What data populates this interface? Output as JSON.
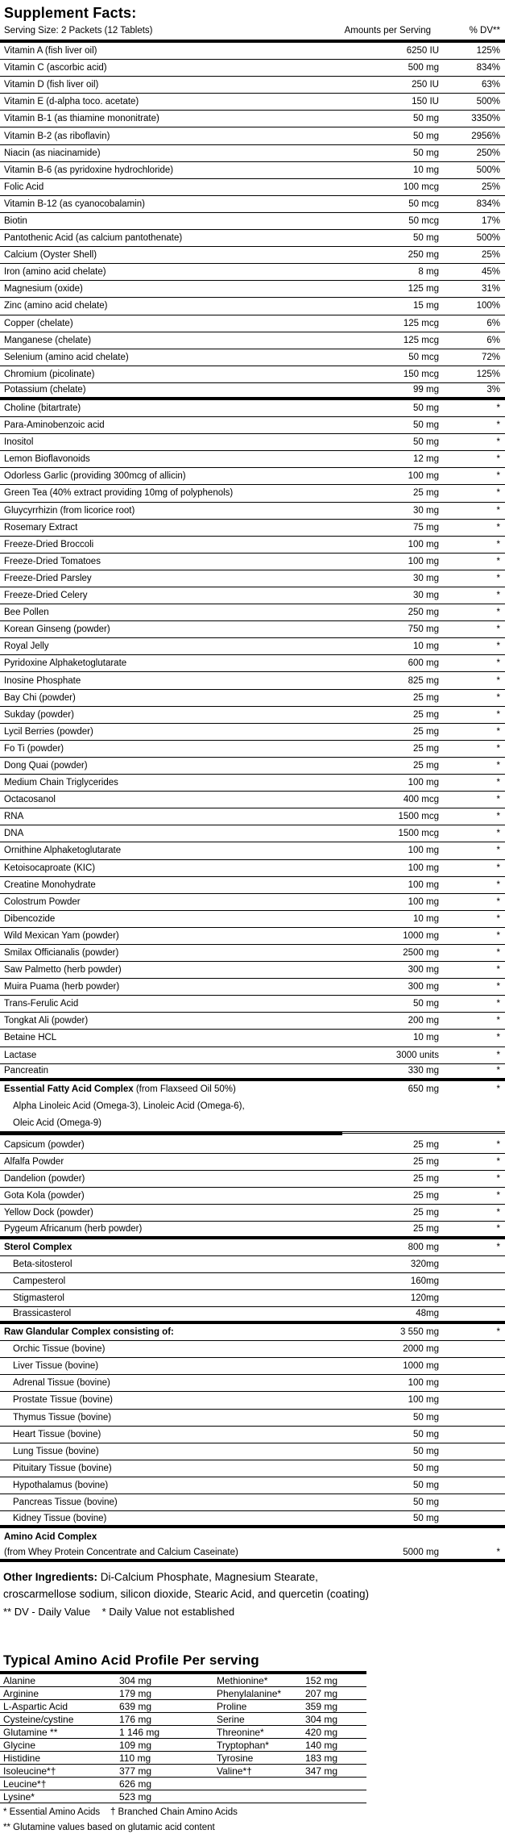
{
  "title": "Supplement Facts:",
  "table": {
    "header": {
      "serving": "Serving Size: 2 Packets (12 Tablets)",
      "amount_col": "Amounts per Serving",
      "dv_col": "% DV**"
    },
    "rows": [
      {
        "n": "Vitamin A (fish liver oil)",
        "a": "6250 IU",
        "d": "125%"
      },
      {
        "n": "Vitamin C (ascorbic acid)",
        "a": "500 mg",
        "d": "834%"
      },
      {
        "n": "Vitamin D (fish liver oil)",
        "a": "250 IU",
        "d": "63%"
      },
      {
        "n": "Vitamin E (d-alpha toco. acetate)",
        "a": "150 IU",
        "d": "500%"
      },
      {
        "n": "Vitamin B-1 (as thiamine mononitrate)",
        "a": "50 mg",
        "d": "3350%"
      },
      {
        "n": "Vitamin B-2 (as riboflavin)",
        "a": "50 mg",
        "d": "2956%"
      },
      {
        "n": "Niacin (as niacinamide)",
        "a": "50 mg",
        "d": "250%"
      },
      {
        "n": "Vitamin B-6 (as pyridoxine hydrochloride)",
        "a": "10 mg",
        "d": "500%"
      },
      {
        "n": "Folic Acid",
        "a": "100 mcg",
        "d": "25%"
      },
      {
        "n": "Vitamin B-12 (as cyanocobalamin)",
        "a": "50 mcg",
        "d": "834%"
      },
      {
        "n": "Biotin",
        "a": "50 mcg",
        "d": "17%"
      },
      {
        "n": "Pantothenic Acid (as calcium pantothenate)",
        "a": "50 mg",
        "d": "500%"
      },
      {
        "n": "Calcium (Oyster Shell)",
        "a": "250 mg",
        "d": "25%"
      },
      {
        "n": "Iron (amino acid chelate)",
        "a": "8 mg",
        "d": "45%"
      },
      {
        "n": "Magnesium (oxide)",
        "a": "125 mg",
        "d": "31%"
      },
      {
        "n": "Zinc (amino acid chelate)",
        "a": "15 mg",
        "d": "100%"
      },
      {
        "n": "Copper (chelate)",
        "a": "125 mcg",
        "d": "6%"
      },
      {
        "n": "Manganese (chelate)",
        "a": "125 mcg",
        "d": "6%"
      },
      {
        "n": "Selenium (amino acid chelate)",
        "a": "50 mcg",
        "d": "72%"
      },
      {
        "n": "Chromium (picolinate)",
        "a": "150 mcg",
        "d": "125%"
      },
      {
        "n": "Potassium (chelate)",
        "a": "99 mg",
        "d": "3%",
        "sep": "thick"
      },
      {
        "n": "Choline (bitartrate)",
        "a": "50 mg",
        "d": "*"
      },
      {
        "n": "Para-Aminobenzoic acid",
        "a": "50 mg",
        "d": "*"
      },
      {
        "n": "Inositol",
        "a": "50 mg",
        "d": "*"
      },
      {
        "n": "Lemon Bioflavonoids",
        "a": "12 mg",
        "d": "*"
      },
      {
        "n": "Odorless Garlic (providing 300mcg of allicin)",
        "a": "100 mg",
        "d": "*"
      },
      {
        "n": "Green Tea (40% extract providing 10mg of polyphenols)",
        "a": "25 mg",
        "d": "*"
      },
      {
        "n": "Gluycyrrhizin (from licorice root)",
        "a": "30 mg",
        "d": "*"
      },
      {
        "n": "Rosemary Extract",
        "a": "75 mg",
        "d": "*"
      },
      {
        "n": "Freeze-Dried Broccoli",
        "a": "100 mg",
        "d": "*"
      },
      {
        "n": "Freeze-Dried Tomatoes",
        "a": "100 mg",
        "d": "*"
      },
      {
        "n": "Freeze-Dried Parsley",
        "a": "30 mg",
        "d": "*"
      },
      {
        "n": "Freeze-Dried Celery",
        "a": "30 mg",
        "d": "*"
      },
      {
        "n": "Bee Pollen",
        "a": "250 mg",
        "d": "*"
      },
      {
        "n": "Korean Ginseng (powder)",
        "a": "750 mg",
        "d": "*"
      },
      {
        "n": "Royal Jelly",
        "a": "10 mg",
        "d": "*"
      },
      {
        "n": "Pyridoxine Alphaketoglutarate",
        "a": "600 mg",
        "d": "*"
      },
      {
        "n": "Inosine Phosphate",
        "a": "825 mg",
        "d": "*"
      },
      {
        "n": "Bay Chi (powder)",
        "a": "25 mg",
        "d": "*"
      },
      {
        "n": "Sukday (powder)",
        "a": "25 mg",
        "d": "*"
      },
      {
        "n": "Lycil Berries (powder)",
        "a": "25 mg",
        "d": "*"
      },
      {
        "n": "Fo Ti (powder)",
        "a": "25 mg",
        "d": "*"
      },
      {
        "n": "Dong Quai (powder)",
        "a": "25 mg",
        "d": "*"
      },
      {
        "n": "Medium Chain Triglycerides",
        "a": "100 mg",
        "d": "*"
      },
      {
        "n": "Octacosanol",
        "a": "400 mcg",
        "d": "*"
      },
      {
        "n": "RNA",
        "a": "1500 mcg",
        "d": "*"
      },
      {
        "n": "DNA",
        "a": "1500 mcg",
        "d": "*"
      },
      {
        "n": "Ornithine Alphaketoglutarate",
        "a": "100 mg",
        "d": "*"
      },
      {
        "n": "Ketoisocaproate (KIC)",
        "a": "100 mg",
        "d": "*"
      },
      {
        "n": "Creatine Monohydrate",
        "a": "100 mg",
        "d": "*"
      },
      {
        "n": "Colostrum Powder",
        "a": "100 mg",
        "d": "*"
      },
      {
        "n": "Dibencozide",
        "a": "10 mg",
        "d": "*"
      },
      {
        "n": "Wild Mexican Yam (powder)",
        "a": "1000 mg",
        "d": "*"
      },
      {
        "n": "Smilax Officianalis (powder)",
        "a": "2500 mg",
        "d": "*"
      },
      {
        "n": "Saw Palmetto (herb powder)",
        "a": "300 mg",
        "d": "*"
      },
      {
        "n": "Muira Puama (herb powder)",
        "a": "300 mg",
        "d": "*"
      },
      {
        "n": "Trans-Ferulic Acid",
        "a": "50 mg",
        "d": "*"
      },
      {
        "n": "Tongkat Ali (powder)",
        "a": "200 mg",
        "d": "*"
      },
      {
        "n": "Betaine HCL",
        "a": "10 mg",
        "d": "*"
      },
      {
        "n": "Lactase",
        "a": "3000 units",
        "d": "*"
      },
      {
        "n": "Pancreatin",
        "a": "330 mg",
        "d": "*",
        "sep": "thick"
      },
      {
        "n": "Essential Fatty Acid Complex",
        "n2": " (from Flaxseed Oil 50%)",
        "b": 1,
        "a": "650 mg",
        "d": "*",
        "sep": "none"
      },
      {
        "n": "Alpha Linoleic Acid (Omega-3), Linoleic Acid (Omega-6),",
        "i": 1,
        "sep": "none"
      },
      {
        "n": "Oleic Acid (Omega-9)",
        "i": 1,
        "sep": "thin"
      },
      {
        "hr": "partial"
      },
      {
        "n": "Capsicum (powder)",
        "a": "25 mg",
        "d": "*"
      },
      {
        "n": "Alfalfa Powder",
        "a": "25 mg",
        "d": "*"
      },
      {
        "n": "Dandelion (powder)",
        "a": "25 mg",
        "d": "*"
      },
      {
        "n": "Gota Kola (powder)",
        "a": "25 mg",
        "d": "*"
      },
      {
        "n": "Yellow Dock (powder)",
        "a": "25 mg",
        "d": "*"
      },
      {
        "n": "Pygeum Africanum (herb powder)",
        "a": "25 mg",
        "d": "*",
        "sep": "thick"
      },
      {
        "n": "Sterol Complex",
        "b": 1,
        "a": "800 mg",
        "d": "*"
      },
      {
        "n": "Beta-sitosterol",
        "i": 1,
        "a": "320mg"
      },
      {
        "n": "Campesterol",
        "i": 1,
        "a": "160mg"
      },
      {
        "n": "Stigmasterol",
        "i": 1,
        "a": "120mg"
      },
      {
        "n": "Brassicasterol",
        "i": 1,
        "a": "48mg",
        "sep": "thick"
      },
      {
        "n": "Raw Glandular Complex consisting of:",
        "b": 1,
        "a": "3 550 mg",
        "d": "*"
      },
      {
        "n": "Orchic Tissue (bovine)",
        "i": 1,
        "a": "2000 mg"
      },
      {
        "n": "Liver Tissue (bovine)",
        "i": 1,
        "a": "1000 mg"
      },
      {
        "n": "Adrenal Tissue (bovine)",
        "i": 1,
        "a": "100 mg"
      },
      {
        "n": "Prostate Tissue (bovine)",
        "i": 1,
        "a": "100 mg"
      },
      {
        "n": "Thymus Tissue (bovine)",
        "i": 1,
        "a": "50 mg"
      },
      {
        "n": "Heart Tissue (bovine)",
        "i": 1,
        "a": "50 mg"
      },
      {
        "n": "Lung Tissue (bovine)",
        "i": 1,
        "a": "50 mg"
      },
      {
        "n": "Pituitary Tissue (bovine)",
        "i": 1,
        "a": "50 mg"
      },
      {
        "n": "Hypothalamus (bovine)",
        "i": 1,
        "a": "50 mg"
      },
      {
        "n": "Pancreas Tissue (bovine)",
        "i": 1,
        "a": "50 mg"
      },
      {
        "n": "Kidney Tissue (bovine)",
        "i": 1,
        "a": "50 mg",
        "sep": "thick"
      },
      {
        "n": "Amino Acid Complex",
        "b": 1,
        "sep": "none"
      },
      {
        "n": "(from Whey Protein Concentrate and Calcium Caseinate)",
        "a": "5000 mg",
        "d": "*",
        "sep": "thick"
      }
    ]
  },
  "other_ingredients": {
    "label": "Other Ingredients:",
    "line1_rest": " Di-Calcium Phosphate, Magnesium Stearate,",
    "line2": "croscarmellose sodium, silicon dioxide, Stearic Acid, and quercetin (coating)",
    "dv_note": "** DV - Daily Value    * Daily Value not established"
  },
  "amino": {
    "title": "Typical Amino Acid Profile Per serving",
    "rows": [
      {
        "n1": "Alanine",
        "a1": "304 mg",
        "n2": "Methionine*",
        "a2": "152 mg"
      },
      {
        "n1": "Arginine",
        "a1": "179 mg",
        "n2": "Phenylalanine*",
        "a2": "207 mg"
      },
      {
        "n1": "L-Aspartic Acid",
        "a1": "639 mg",
        "n2": "Proline",
        "a2": "359 mg"
      },
      {
        "n1": "Cysteine/cystine",
        "a1": "176 mg",
        "n2": "Serine",
        "a2": "304 mg"
      },
      {
        "n1": "Glutamine **",
        "a1": "1 146 mg",
        "n2": "Threonine*",
        "a2": "420 mg"
      },
      {
        "n1": "Glycine",
        "a1": "109 mg",
        "n2": "Tryptophan*",
        "a2": "140 mg"
      },
      {
        "n1": "Histidine",
        "a1": "110 mg",
        "n2": "Tyrosine",
        "a2": "183 mg"
      },
      {
        "n1": "Isoleucine*†",
        "a1": "377 mg",
        "n2": "Valine*†",
        "a2": "347 mg"
      },
      {
        "n1": "Leucine*†",
        "a1": "626 mg",
        "n2": "",
        "a2": ""
      },
      {
        "n1": "Lysine*",
        "a1": "523 mg",
        "n2": "",
        "a2": ""
      }
    ],
    "footnote1": "* Essential Amino Acids    † Branched Chain Amino Acids",
    "footnote2": "** Glutamine values based on glutamic acid content"
  }
}
